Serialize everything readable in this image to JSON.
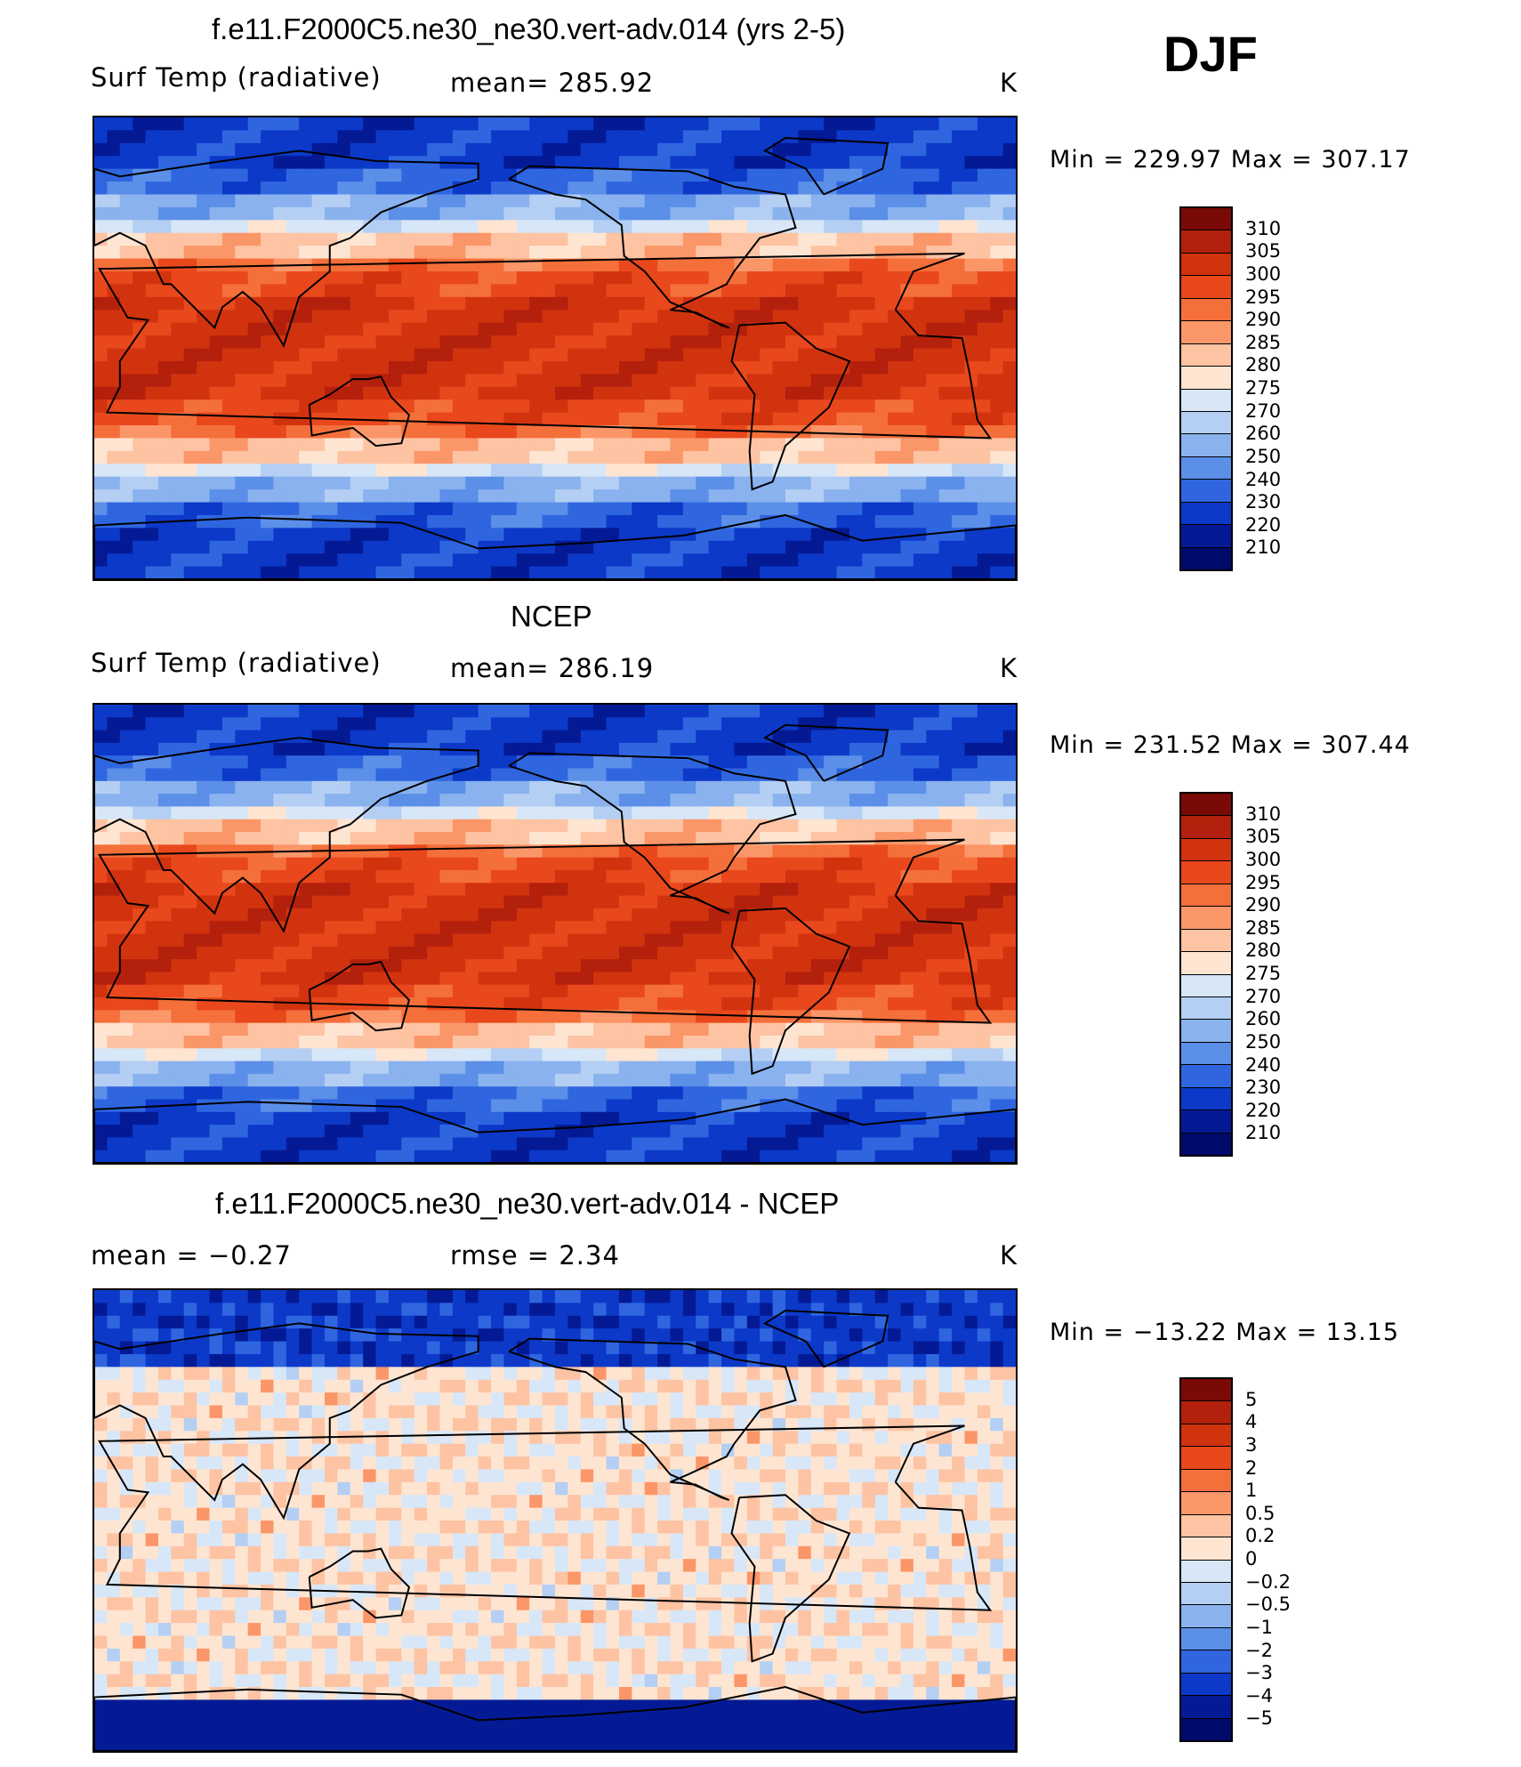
{
  "season": "DJF",
  "panels": [
    {
      "title": "f.e11.F2000C5.ne30_ne30.vert-adv.014 (yrs 2-5)",
      "left_label": "Surf Temp (radiative)",
      "center_label": "mean= 285.92",
      "units": "K",
      "minmax": "Min = 229.97 Max = 307.17",
      "levels": [
        "310",
        "305",
        "300",
        "295",
        "290",
        "285",
        "280",
        "275",
        "270",
        "260",
        "250",
        "240",
        "230",
        "220",
        "210"
      ],
      "colors": [
        "#7a0a06",
        "#b3200c",
        "#d2330f",
        "#e8481c",
        "#f56f3a",
        "#fb9669",
        "#fdc3a3",
        "#fee5d2",
        "#d7e7f8",
        "#b4cff3",
        "#8ab2ee",
        "#5b8fe8",
        "#2f66e0",
        "#0c39c8",
        "#041a95",
        "#000a6b"
      ],
      "map_type": "temperature"
    },
    {
      "title": "NCEP",
      "left_label": "Surf Temp (radiative)",
      "center_label": "mean= 286.19",
      "units": "K",
      "minmax": "Min = 231.52 Max = 307.44",
      "levels": [
        "310",
        "305",
        "300",
        "295",
        "290",
        "285",
        "280",
        "275",
        "270",
        "260",
        "250",
        "240",
        "230",
        "220",
        "210"
      ],
      "colors": [
        "#7a0a06",
        "#b3200c",
        "#d2330f",
        "#e8481c",
        "#f56f3a",
        "#fb9669",
        "#fdc3a3",
        "#fee5d2",
        "#d7e7f8",
        "#b4cff3",
        "#8ab2ee",
        "#5b8fe8",
        "#2f66e0",
        "#0c39c8",
        "#041a95",
        "#000a6b"
      ],
      "map_type": "temperature"
    },
    {
      "title": "f.e11.F2000C5.ne30_ne30.vert-adv.014 - NCEP",
      "left_label": "mean =   −0.27",
      "center_label": "rmse =    2.34",
      "units": "K",
      "minmax": "Min = −13.22 Max =  13.15",
      "levels": [
        "5",
        "4",
        "3",
        "2",
        "1",
        "0.5",
        "0.2",
        "0",
        "−0.2",
        "−0.5",
        "−1",
        "−2",
        "−3",
        "−4",
        "−5"
      ],
      "colors": [
        "#7a0a06",
        "#b3200c",
        "#d2330f",
        "#e8481c",
        "#f56f3a",
        "#fb9669",
        "#fdc3a3",
        "#fee5d2",
        "#d7e7f8",
        "#b4cff3",
        "#8ab2ee",
        "#5b8fe8",
        "#2f66e0",
        "#0c39c8",
        "#041a95",
        "#000a6b"
      ],
      "map_type": "difference"
    }
  ]
}
